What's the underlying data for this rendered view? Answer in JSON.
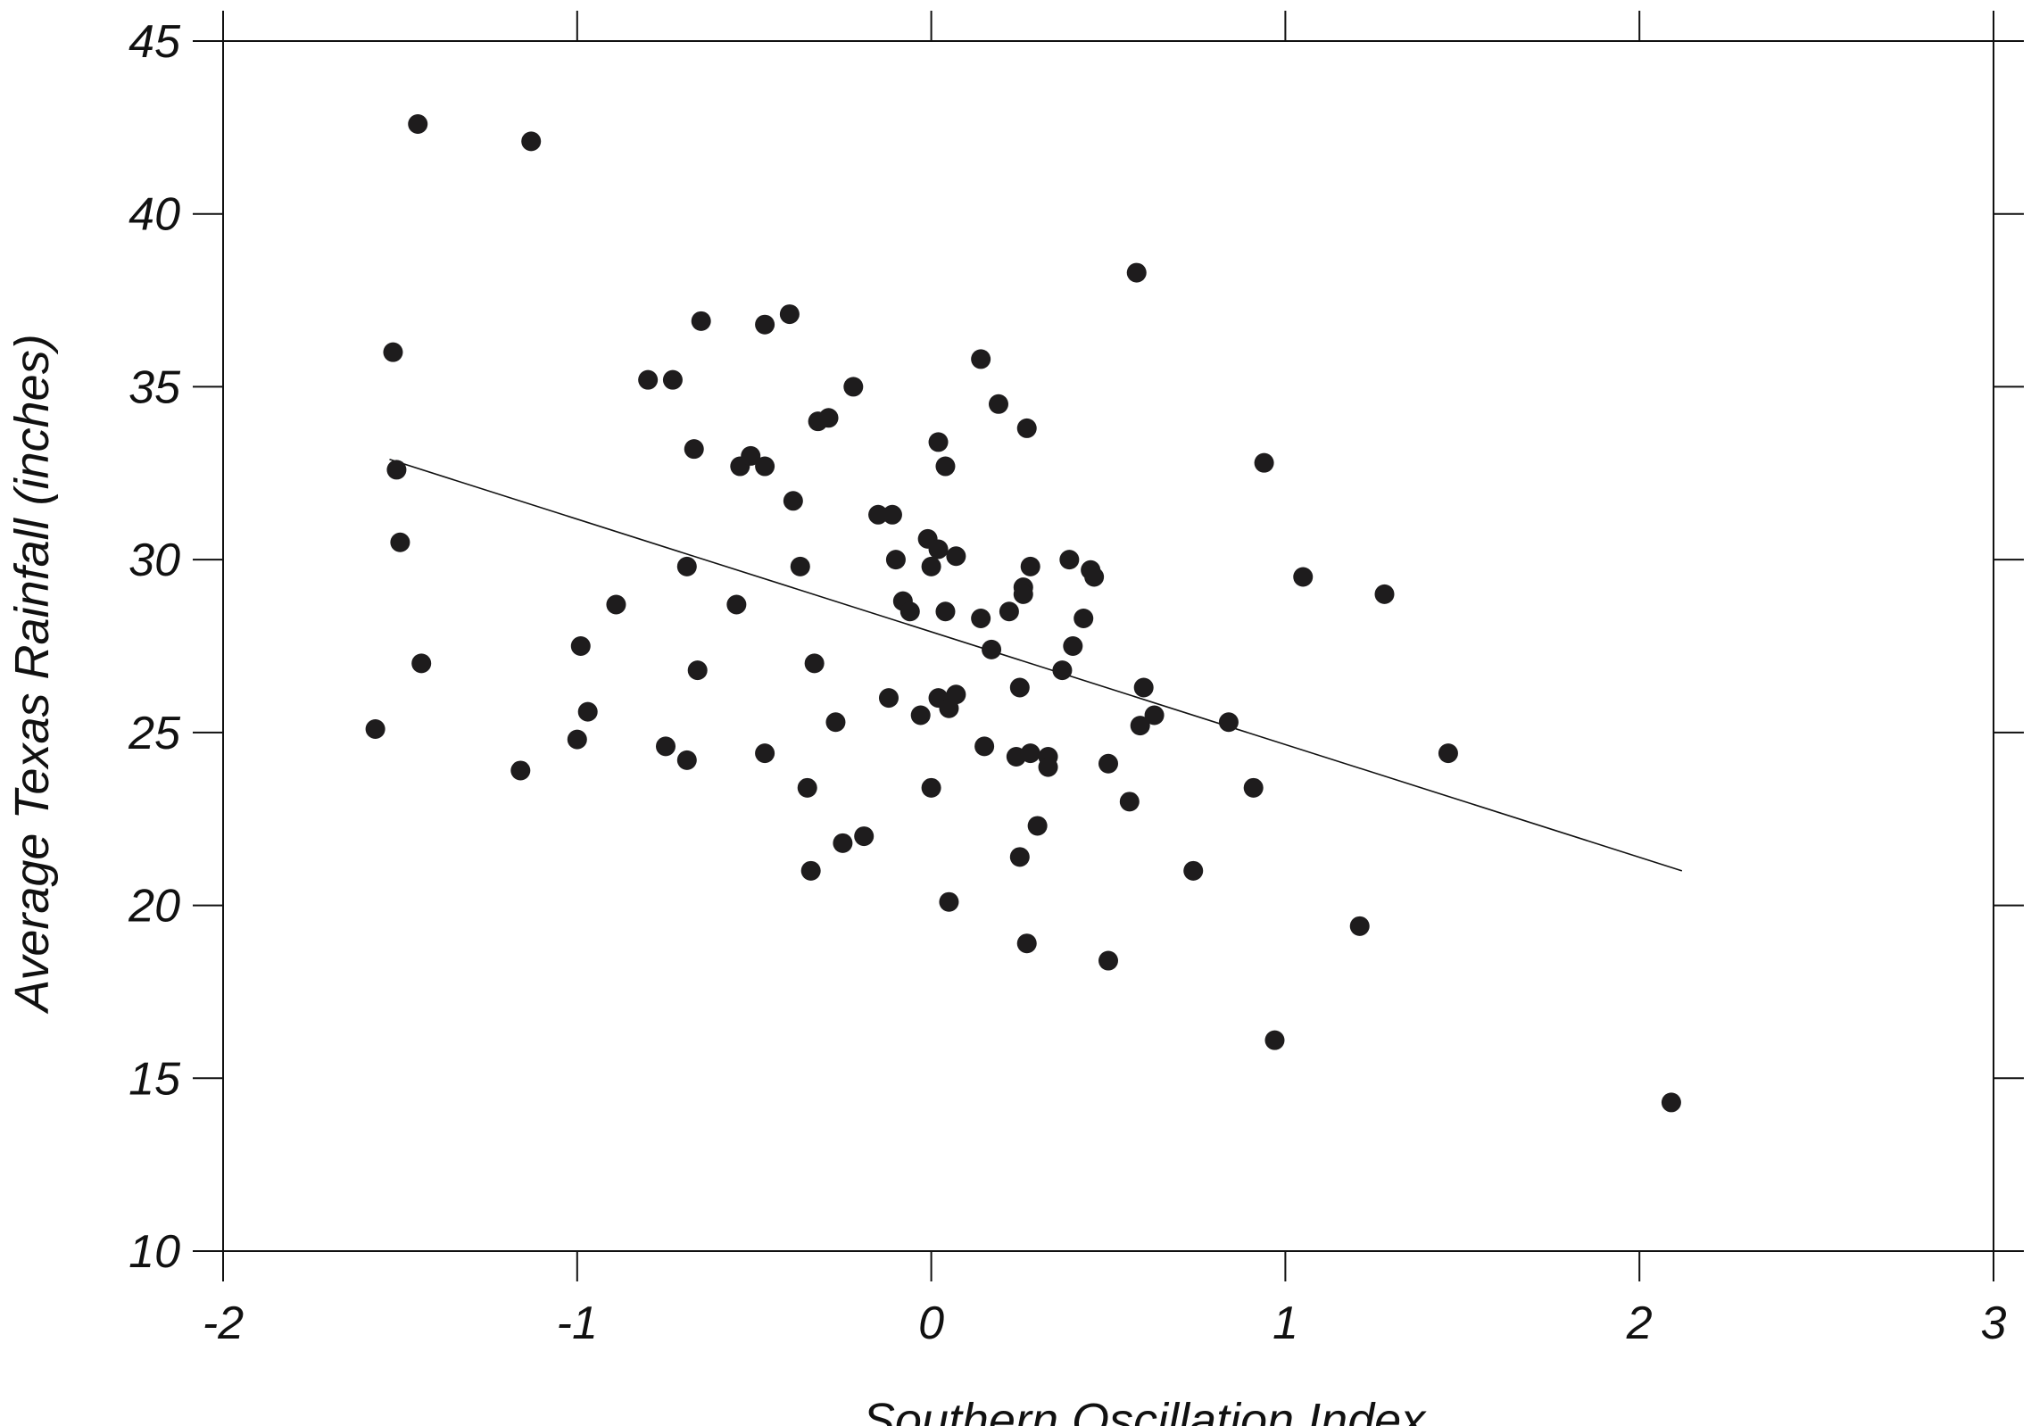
{
  "chart_data": {
    "type": "scatter",
    "title": "",
    "xlabel": "Southern Oscillation Index",
    "ylabel": "Average Texas Rainfall (inches)",
    "xlim": [
      -2,
      3
    ],
    "ylim": [
      10,
      45
    ],
    "x_ticks": [
      -2,
      -1,
      0,
      1,
      2,
      3
    ],
    "y_ticks": [
      10,
      15,
      20,
      25,
      30,
      35,
      40,
      45
    ],
    "x_tick_labels": [
      "-2",
      "-1",
      "0",
      "1",
      "2",
      "3"
    ],
    "y_tick_labels": [
      "10",
      "15",
      "20",
      "25",
      "30",
      "35",
      "40",
      "45"
    ],
    "grid": false,
    "legend": "none",
    "colors": {
      "points": "#1e1c1d",
      "axes": "#111111"
    },
    "points": [
      {
        "x": -1.45,
        "y": 42.6
      },
      {
        "x": -1.13,
        "y": 42.1
      },
      {
        "x": -1.52,
        "y": 36.0
      },
      {
        "x": -1.51,
        "y": 32.6
      },
      {
        "x": -1.5,
        "y": 30.5
      },
      {
        "x": -1.44,
        "y": 27.0
      },
      {
        "x": -1.57,
        "y": 25.1
      },
      {
        "x": -1.16,
        "y": 23.9
      },
      {
        "x": -1.0,
        "y": 24.8
      },
      {
        "x": -0.99,
        "y": 27.5
      },
      {
        "x": -0.97,
        "y": 25.6
      },
      {
        "x": -0.89,
        "y": 28.7
      },
      {
        "x": -0.8,
        "y": 35.2
      },
      {
        "x": -0.73,
        "y": 35.2
      },
      {
        "x": -0.75,
        "y": 24.6
      },
      {
        "x": -0.69,
        "y": 29.8
      },
      {
        "x": -0.69,
        "y": 24.2
      },
      {
        "x": -0.67,
        "y": 33.2
      },
      {
        "x": -0.66,
        "y": 26.8
      },
      {
        "x": -0.65,
        "y": 36.9
      },
      {
        "x": -0.55,
        "y": 28.7
      },
      {
        "x": -0.54,
        "y": 32.7
      },
      {
        "x": -0.51,
        "y": 33.0
      },
      {
        "x": -0.47,
        "y": 36.8
      },
      {
        "x": -0.47,
        "y": 32.7
      },
      {
        "x": -0.47,
        "y": 24.4
      },
      {
        "x": -0.4,
        "y": 37.1
      },
      {
        "x": -0.39,
        "y": 31.7
      },
      {
        "x": -0.37,
        "y": 29.8
      },
      {
        "x": -0.35,
        "y": 23.4
      },
      {
        "x": -0.34,
        "y": 21.0
      },
      {
        "x": -0.33,
        "y": 27.0
      },
      {
        "x": -0.32,
        "y": 34.0
      },
      {
        "x": -0.29,
        "y": 34.1
      },
      {
        "x": -0.27,
        "y": 25.3
      },
      {
        "x": -0.25,
        "y": 21.8
      },
      {
        "x": -0.22,
        "y": 35.0
      },
      {
        "x": -0.19,
        "y": 22.0
      },
      {
        "x": -0.15,
        "y": 31.3
      },
      {
        "x": -0.12,
        "y": 26.0
      },
      {
        "x": -0.11,
        "y": 31.3
      },
      {
        "x": -0.1,
        "y": 30.0
      },
      {
        "x": -0.08,
        "y": 28.8
      },
      {
        "x": -0.06,
        "y": 28.5
      },
      {
        "x": -0.03,
        "y": 25.5
      },
      {
        "x": -0.01,
        "y": 30.6
      },
      {
        "x": 0.0,
        "y": 29.8
      },
      {
        "x": 0.0,
        "y": 23.4
      },
      {
        "x": 0.02,
        "y": 33.4
      },
      {
        "x": 0.02,
        "y": 30.3
      },
      {
        "x": 0.02,
        "y": 26.0
      },
      {
        "x": 0.04,
        "y": 32.7
      },
      {
        "x": 0.04,
        "y": 28.5
      },
      {
        "x": 0.05,
        "y": 25.7
      },
      {
        "x": 0.05,
        "y": 20.1
      },
      {
        "x": 0.07,
        "y": 30.1
      },
      {
        "x": 0.07,
        "y": 26.1
      },
      {
        "x": 0.14,
        "y": 35.8
      },
      {
        "x": 0.14,
        "y": 28.3
      },
      {
        "x": 0.15,
        "y": 24.6
      },
      {
        "x": 0.17,
        "y": 27.4
      },
      {
        "x": 0.19,
        "y": 34.5
      },
      {
        "x": 0.22,
        "y": 28.5
      },
      {
        "x": 0.24,
        "y": 24.3
      },
      {
        "x": 0.25,
        "y": 26.3
      },
      {
        "x": 0.25,
        "y": 21.4
      },
      {
        "x": 0.26,
        "y": 29.2
      },
      {
        "x": 0.26,
        "y": 29.0
      },
      {
        "x": 0.27,
        "y": 33.8
      },
      {
        "x": 0.27,
        "y": 18.9
      },
      {
        "x": 0.28,
        "y": 29.8
      },
      {
        "x": 0.28,
        "y": 24.4
      },
      {
        "x": 0.3,
        "y": 22.3
      },
      {
        "x": 0.33,
        "y": 24.3
      },
      {
        "x": 0.33,
        "y": 24.0
      },
      {
        "x": 0.37,
        "y": 26.8
      },
      {
        "x": 0.39,
        "y": 30.0
      },
      {
        "x": 0.4,
        "y": 27.5
      },
      {
        "x": 0.43,
        "y": 28.3
      },
      {
        "x": 0.45,
        "y": 29.7
      },
      {
        "x": 0.46,
        "y": 29.5
      },
      {
        "x": 0.5,
        "y": 24.1
      },
      {
        "x": 0.5,
        "y": 18.4
      },
      {
        "x": 0.56,
        "y": 23.0
      },
      {
        "x": 0.58,
        "y": 38.3
      },
      {
        "x": 0.59,
        "y": 25.2
      },
      {
        "x": 0.6,
        "y": 26.3
      },
      {
        "x": 0.63,
        "y": 25.5
      },
      {
        "x": 0.74,
        "y": 21.0
      },
      {
        "x": 0.84,
        "y": 25.3
      },
      {
        "x": 0.91,
        "y": 23.4
      },
      {
        "x": 0.94,
        "y": 32.8
      },
      {
        "x": 0.97,
        "y": 16.1
      },
      {
        "x": 1.05,
        "y": 29.5
      },
      {
        "x": 1.21,
        "y": 19.4
      },
      {
        "x": 1.28,
        "y": 29.0
      },
      {
        "x": 1.46,
        "y": 24.4
      },
      {
        "x": 2.09,
        "y": 14.3
      }
    ],
    "trendline": {
      "x": [
        -1.53,
        2.12
      ],
      "y": [
        32.9,
        21.0
      ]
    }
  }
}
